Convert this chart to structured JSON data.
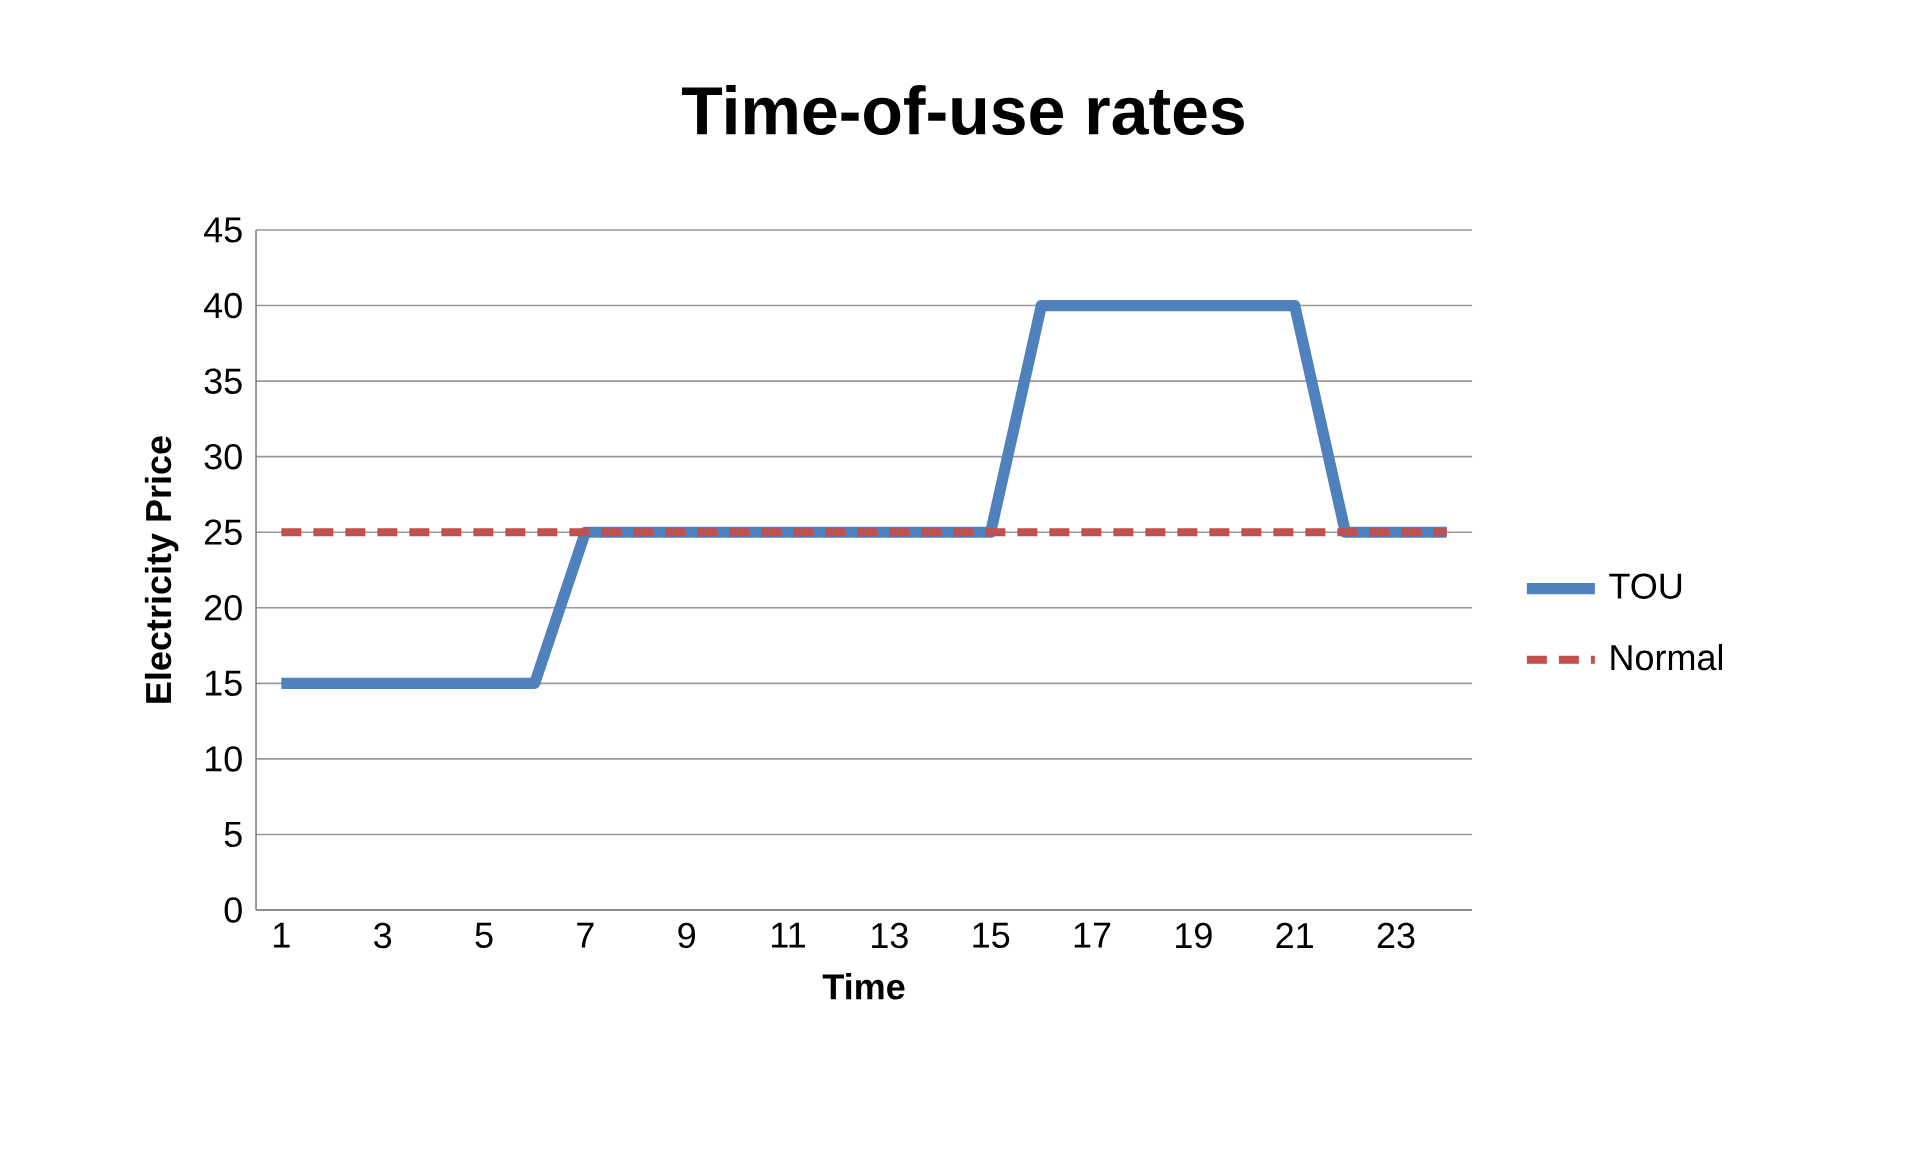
{
  "chart_data": {
    "type": "line",
    "title": "Time-of-use rates",
    "xlabel": "Time",
    "ylabel": "Electricity Price",
    "categories": [
      "1",
      null,
      "3",
      null,
      "5",
      null,
      "7",
      null,
      "9",
      null,
      "11",
      null,
      "13",
      null,
      "15",
      null,
      "17",
      null,
      "19",
      null,
      "21",
      null,
      "23",
      null
    ],
    "series": [
      {
        "name": "TOU",
        "color": "#4f81bd",
        "line_style": "solid",
        "values": [
          15,
          15,
          15,
          15,
          15,
          15,
          25,
          25,
          25,
          25,
          25,
          25,
          25,
          25,
          25,
          40,
          40,
          40,
          40,
          40,
          40,
          25,
          25,
          25
        ]
      },
      {
        "name": "Normal",
        "color": "#c0504d",
        "line_style": "dashed",
        "values": [
          25,
          25,
          25,
          25,
          25,
          25,
          25,
          25,
          25,
          25,
          25,
          25,
          25,
          25,
          25,
          25,
          25,
          25,
          25,
          25,
          25,
          25,
          25,
          25
        ]
      }
    ],
    "ylim": [
      0,
      45
    ],
    "yticks": [
      0,
      5,
      10,
      15,
      20,
      25,
      30,
      35,
      40,
      45
    ],
    "grid": "y",
    "legend": "right",
    "marker": "none"
  }
}
